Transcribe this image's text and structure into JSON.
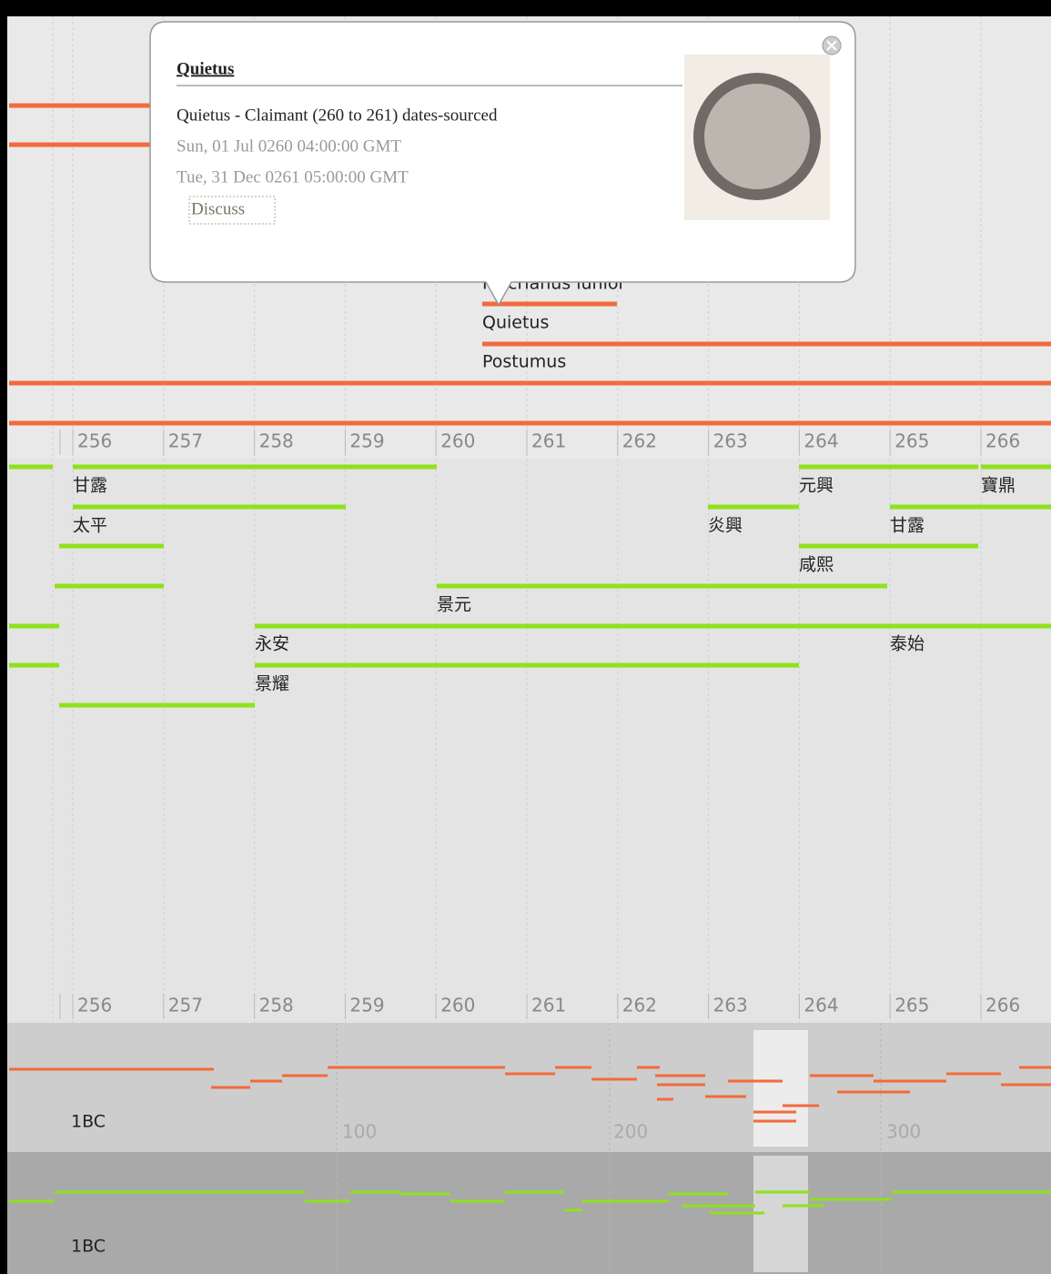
{
  "popup": {
    "title": "Quietus",
    "description": "Quietus - Claimant (260 to 261) dates-sourced",
    "start": "Sun, 01 Jul 0260 04:00:00 GMT",
    "end": "Tue, 31 Dec 0261 05:00:00 GMT",
    "link": "Discuss"
  },
  "upper_band": {
    "events": [
      "Macrianus iunior",
      "Quietus",
      "Postumus"
    ]
  },
  "year_scale": [
    "256",
    "257",
    "258",
    "259",
    "260",
    "261",
    "262",
    "263",
    "264",
    "265",
    "266"
  ],
  "lower_band": {
    "events": [
      "甘露",
      "太平",
      "元興",
      "寶鼎",
      "炎興",
      "甘露",
      "咸熙",
      "景元",
      "永安",
      "泰始",
      "景耀"
    ]
  },
  "overview": {
    "band_label": "1BC",
    "scale": [
      "100",
      "200",
      "300"
    ]
  }
}
